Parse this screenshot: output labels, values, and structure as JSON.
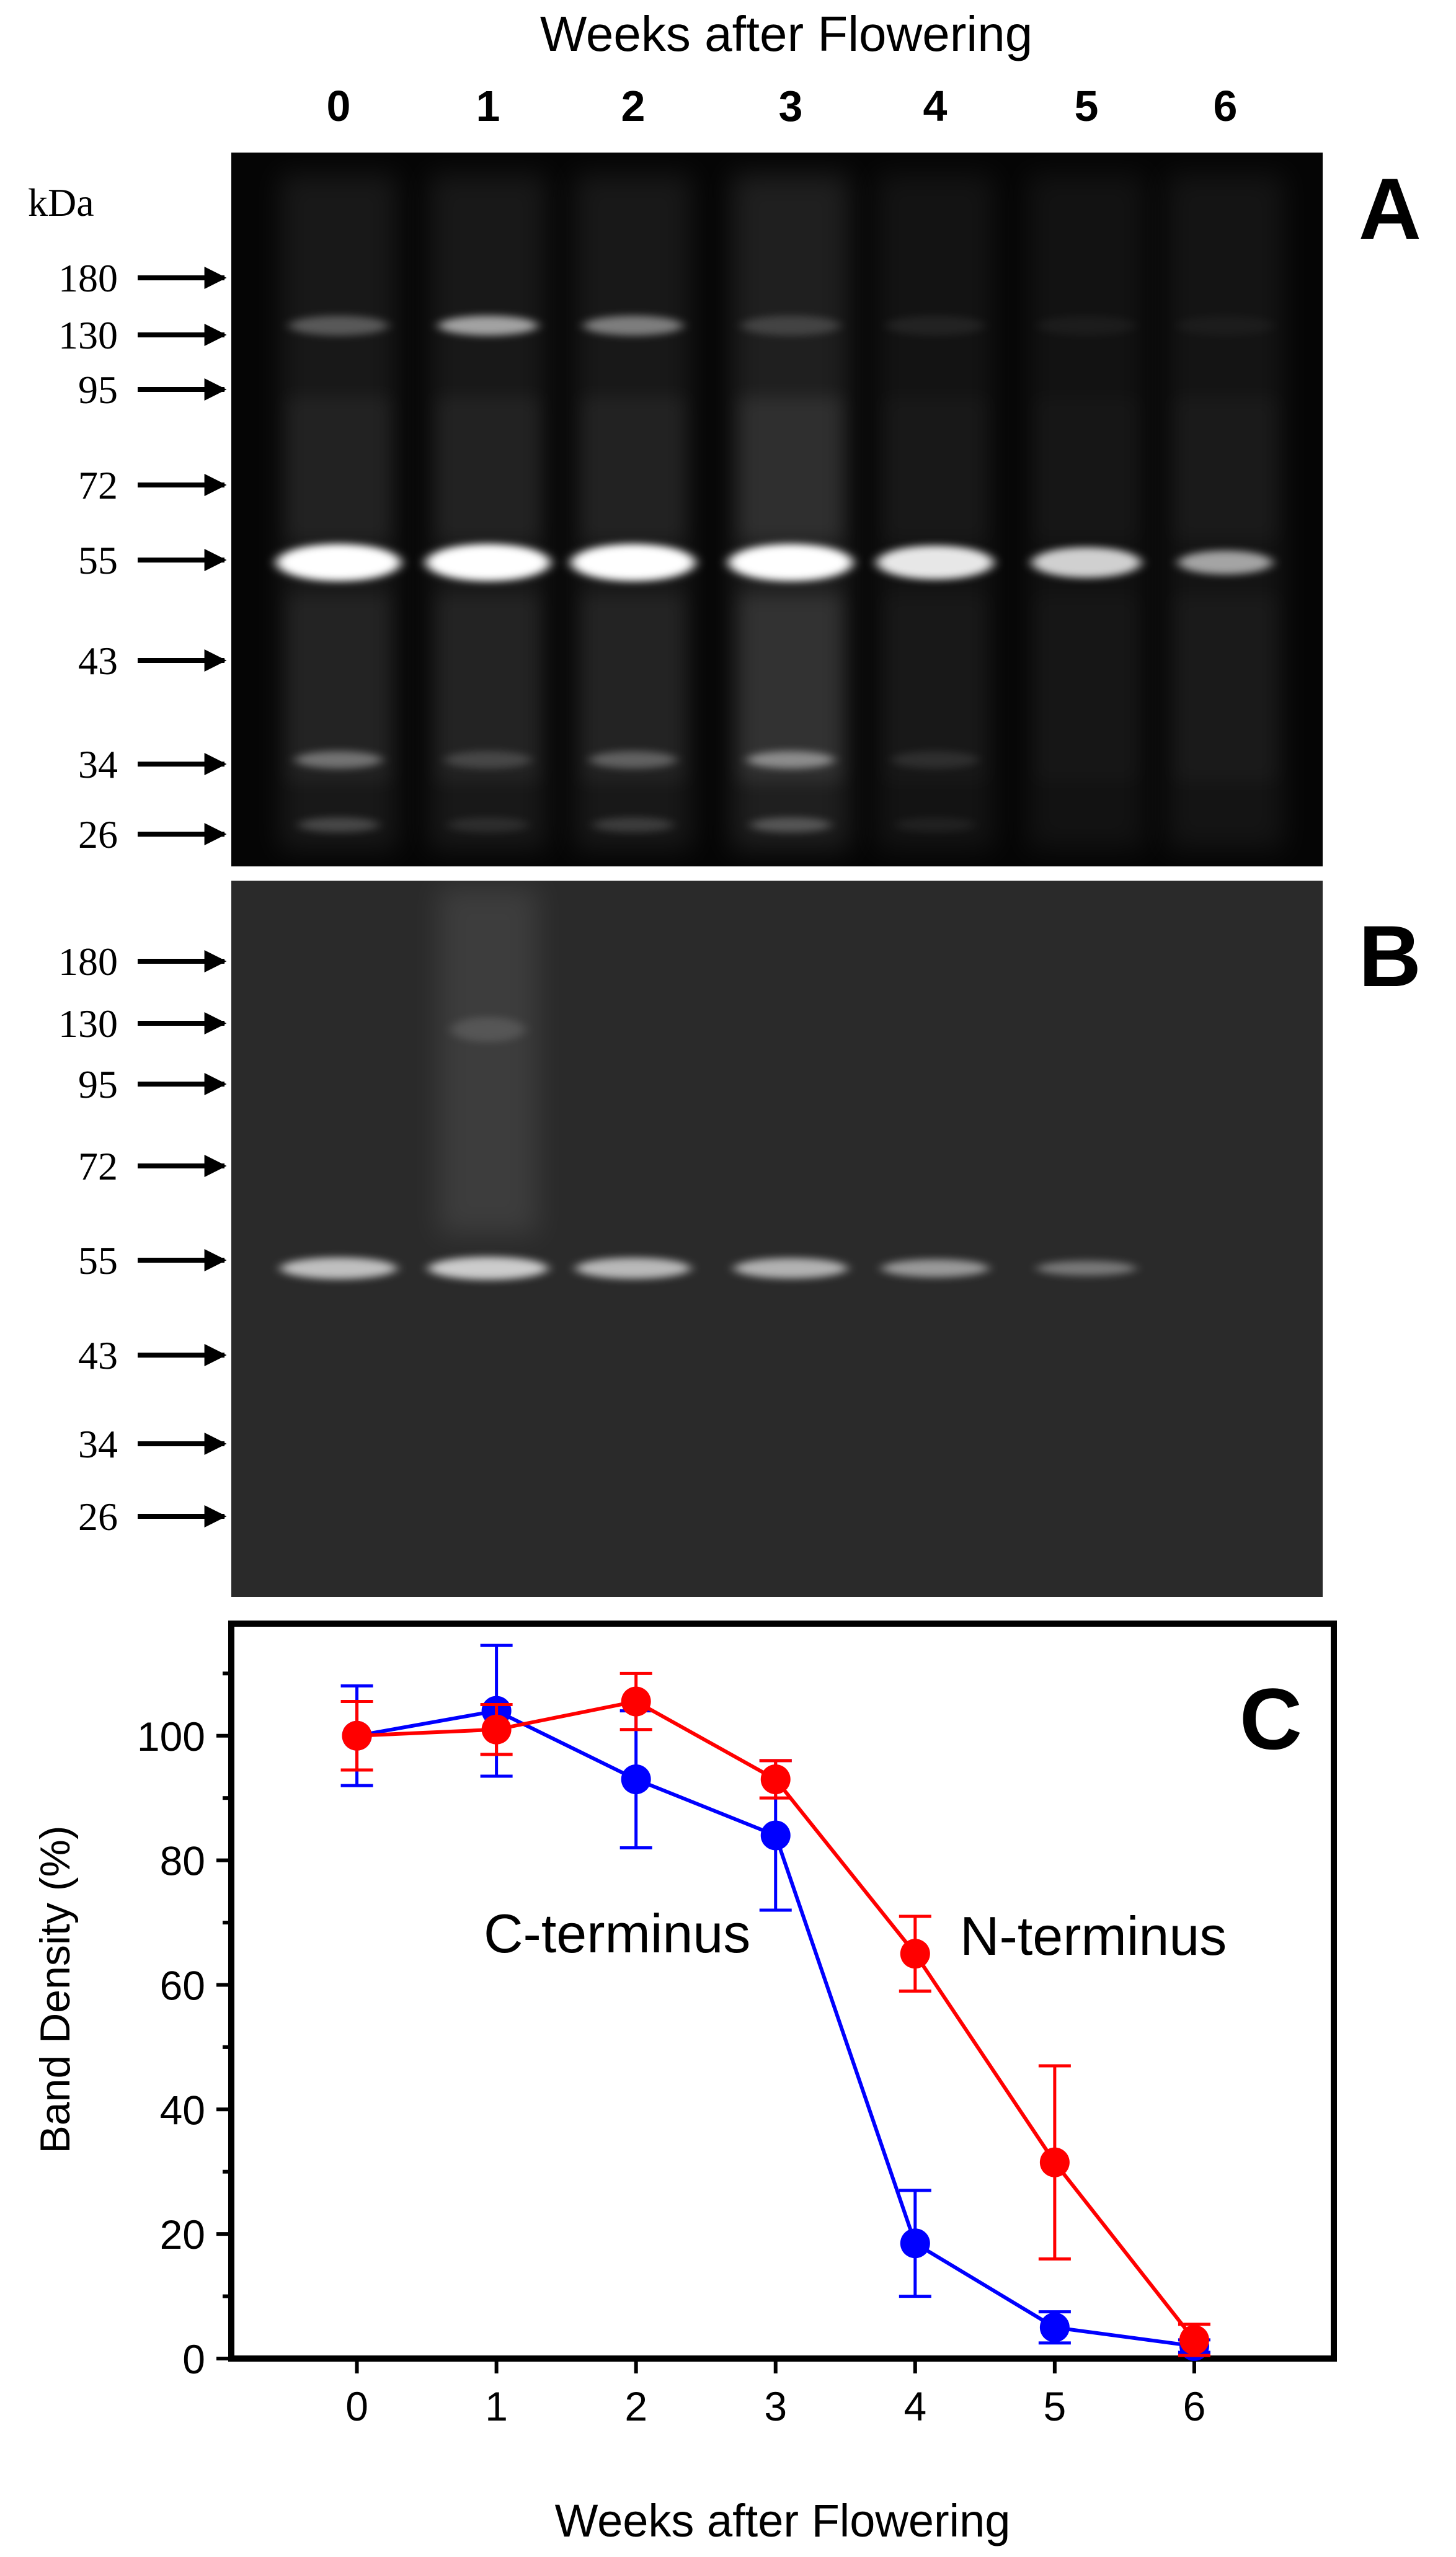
{
  "top_axis": {
    "title": "Weeks after Flowering",
    "lanes": [
      "0",
      "1",
      "2",
      "3",
      "4",
      "5",
      "6"
    ]
  },
  "panel_a": {
    "letter": "A",
    "unit_label": "kDa",
    "markers": [
      "180",
      "130",
      "95",
      "72",
      "55",
      "43",
      "34",
      "26"
    ],
    "band_55_intensity": [
      1.0,
      1.0,
      1.0,
      1.0,
      0.85,
      0.7,
      0.4
    ],
    "band_130_intensity": [
      0.35,
      0.75,
      0.55,
      0.2,
      0.08,
      0.05,
      0.04
    ],
    "band_34_intensity": [
      0.45,
      0.2,
      0.35,
      0.55,
      0.12,
      0.0,
      0.0
    ],
    "smear_intensity": [
      0.35,
      0.35,
      0.35,
      0.6,
      0.15,
      0.12,
      0.18
    ]
  },
  "panel_b": {
    "letter": "B",
    "markers": [
      "180",
      "130",
      "95",
      "72",
      "55",
      "43",
      "34",
      "26"
    ],
    "band_55_intensity": [
      0.75,
      0.85,
      0.7,
      0.65,
      0.45,
      0.2,
      0.0
    ],
    "smear_intensity": [
      0.0,
      0.25,
      0.0,
      0.0,
      0.0,
      0.0,
      0.0
    ]
  },
  "panel_c": {
    "letter": "C",
    "ylabel": "Band Density (%)",
    "xlabel": "Weeks after Flowering",
    "label_c_terminus": "C-terminus",
    "label_n_terminus": "N-terminus"
  },
  "chart_data": {
    "type": "line",
    "x": [
      0,
      1,
      2,
      3,
      4,
      5,
      6
    ],
    "xlim": [
      -0.9,
      7.0
    ],
    "ylim": [
      0,
      118
    ],
    "xticks": [
      "0",
      "1",
      "2",
      "3",
      "4",
      "5",
      "6"
    ],
    "yticks": [
      "0",
      "20",
      "40",
      "60",
      "80",
      "100"
    ],
    "series": [
      {
        "name": "C-terminus",
        "color": "#0000ff",
        "values": [
          100,
          104,
          93,
          84,
          18.5,
          5,
          2
        ],
        "errors": [
          8,
          10.5,
          11,
          12,
          8.5,
          2.5,
          1
        ]
      },
      {
        "name": "N-terminus",
        "color": "#ff0000",
        "values": [
          100,
          101,
          105.5,
          93,
          65,
          31.5,
          3
        ],
        "errors": [
          5.5,
          4,
          4.5,
          3,
          6,
          15.5,
          2.5
        ]
      }
    ],
    "grid": false
  }
}
